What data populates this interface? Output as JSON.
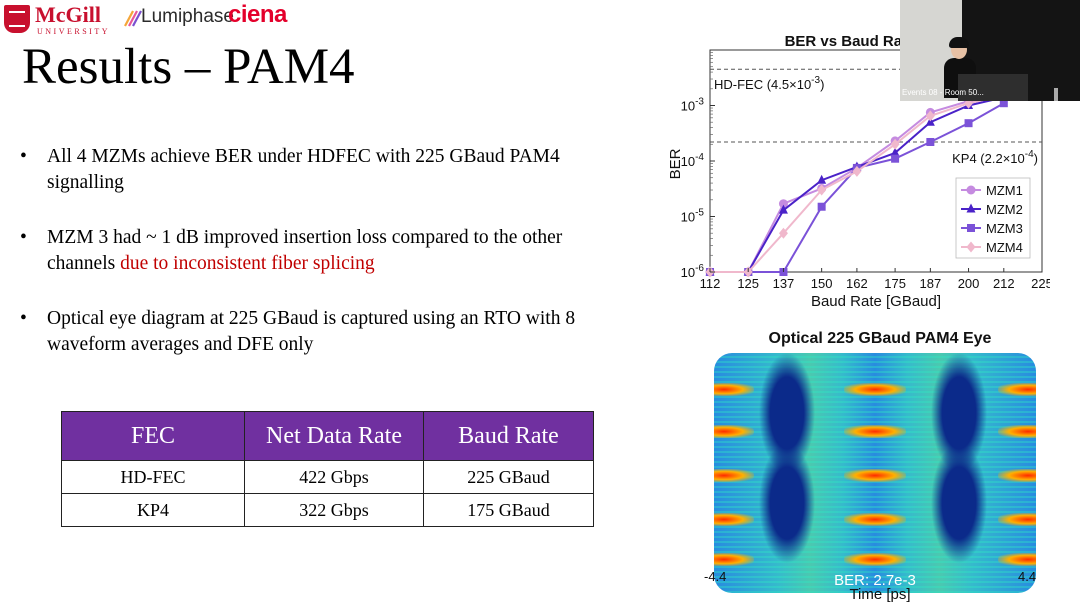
{
  "logos": {
    "mcgill_name": "McGill",
    "mcgill_sub": "UNIVERSITY",
    "lumiphase": "Lumiphase",
    "ciena": "ciena"
  },
  "slide": {
    "title": "Results – PAM4",
    "bullets": [
      {
        "text": "All 4 MZMs achieve BER under HDFEC with 225 GBaud PAM4 signalling"
      },
      {
        "text": "MZM 3 had ~ 1 dB improved insertion loss compared to the other channels ",
        "highlight": "due to inconsistent fiber splicing",
        "highlight_color": "#c00000"
      },
      {
        "text": "Optical eye diagram at 225 GBaud is captured using an RTO with 8 waveform averages and DFE only"
      }
    ]
  },
  "table": {
    "header_color": "#7030a0",
    "headers": [
      "FEC",
      "Net Data Rate",
      "Baud Rate"
    ],
    "rows": [
      [
        "HD-FEC",
        "422 Gbps",
        "225 GBaud"
      ],
      [
        "KP4",
        "322 Gbps",
        "175 GBaud"
      ]
    ]
  },
  "chart_data": {
    "type": "line",
    "title": "BER vs Baud Rate",
    "xlabel": "Baud Rate [GBaud]",
    "ylabel": "BER",
    "x": [
      112,
      125,
      137,
      150,
      162,
      175,
      187,
      200,
      212,
      225
    ],
    "xtick_labels": [
      "112",
      "125",
      "137",
      "150",
      "162",
      "175",
      "187",
      "200",
      "212",
      "225"
    ],
    "ylog": true,
    "ylim": [
      1e-06,
      0.01
    ],
    "ytick_values": [
      1e-06,
      1e-05,
      0.0001,
      0.001
    ],
    "ytick_labels": [
      [
        "10",
        "-6"
      ],
      [
        "10",
        "-5"
      ],
      [
        "10",
        "-4"
      ],
      [
        "10",
        "-3"
      ]
    ],
    "legend_position": "right",
    "reference_lines": [
      {
        "y": 0.0045,
        "label": "HD-FEC (4.5×10",
        "exp": "-3",
        "suffix": ")"
      },
      {
        "y": 0.00022,
        "label": "KP4 (2.2×10",
        "exp": "-4",
        "suffix": ")"
      }
    ],
    "series": [
      {
        "name": "MZM1",
        "color": "#c58be0",
        "marker": "circle",
        "values": [
          1e-06,
          1e-06,
          1.7e-05,
          3.2e-05,
          7.5e-05,
          0.00023,
          0.00075,
          0.0012,
          0.0016,
          null
        ]
      },
      {
        "name": "MZM2",
        "color": "#4a22c8",
        "marker": "triangle",
        "values": [
          1e-06,
          1e-06,
          1.3e-05,
          4.5e-05,
          7.8e-05,
          0.00014,
          0.0005,
          0.001,
          0.0014,
          null
        ]
      },
      {
        "name": "MZM3",
        "color": "#7b52d8",
        "marker": "square",
        "values": [
          1e-06,
          1e-06,
          1e-06,
          1.5e-05,
          7.5e-05,
          0.00011,
          0.00022,
          0.00048,
          0.0011,
          null
        ]
      },
      {
        "name": "MZM4",
        "color": "#f0b8cc",
        "marker": "diamond",
        "values": [
          1e-06,
          1e-06,
          5e-06,
          3e-05,
          6.5e-05,
          0.0002,
          0.00065,
          0.0011,
          0.0015,
          null
        ]
      }
    ]
  },
  "eye": {
    "title": "Optical 225 GBaud PAM4 Eye",
    "ber_label": "BER: 2.7e-3",
    "x_min_label": "-4.4",
    "x_max_label": "4.4",
    "xlabel": "Time [ps]"
  },
  "video": {
    "caption": "Events 08 - Room 50..."
  }
}
